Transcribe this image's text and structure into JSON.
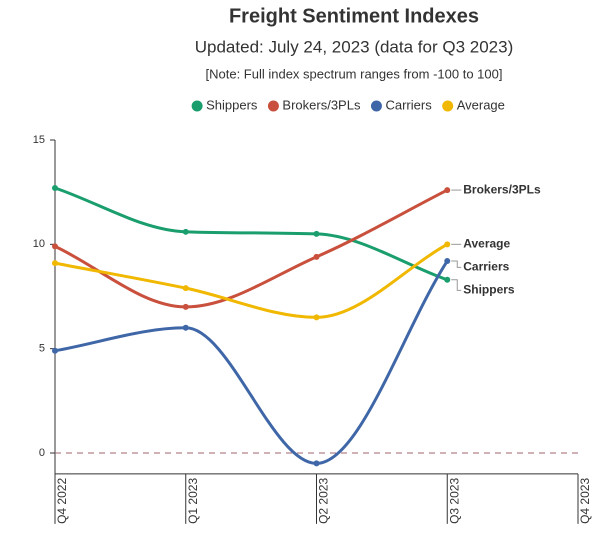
{
  "chart_data": {
    "type": "line",
    "title": "Freight Sentiment Indexes",
    "subtitle": "Updated: July 24, 2023 (data for Q3 2023)",
    "note": "[Note: Full index spectrum ranges from -100 to 100]",
    "categories": [
      "Q4 2022",
      "Q1 2023",
      "Q2 2023",
      "Q3 2023",
      "Q4 2023"
    ],
    "series": [
      {
        "name": "Shippers",
        "color": "#1a9e6e",
        "values": [
          12.7,
          10.6,
          10.5,
          8.3,
          null
        ]
      },
      {
        "name": "Brokers/3PLs",
        "color": "#c9503c",
        "values": [
          9.9,
          7.0,
          9.4,
          12.6,
          null
        ]
      },
      {
        "name": "Carriers",
        "color": "#3f67a8",
        "values": [
          4.9,
          6.0,
          -0.5,
          9.2,
          null
        ]
      },
      {
        "name": "Average",
        "color": "#f0b800",
        "values": [
          9.1,
          7.9,
          6.5,
          10.0,
          null
        ]
      }
    ],
    "ylim": [
      -1,
      15
    ],
    "yticks": [
      0,
      5,
      10,
      15
    ],
    "reference_line": 0,
    "legend": "top"
  }
}
